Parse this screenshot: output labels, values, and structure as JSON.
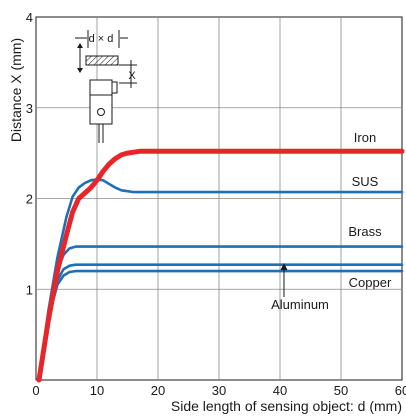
{
  "chart_data": {
    "type": "line",
    "title": "",
    "xlabel": "Side length of sensing object: d (mm)",
    "ylabel": "Distance X (mm)",
    "xlim": [
      0,
      60
    ],
    "ylim": [
      0,
      4
    ],
    "xticks": [
      0,
      10,
      20,
      30,
      40,
      50,
      60
    ],
    "yticks": [
      1,
      2,
      3,
      4
    ],
    "grid": true,
    "series": [
      {
        "name": "Iron",
        "color": "#e8262a",
        "x": [
          0.5,
          2,
          3.5,
          5,
          6,
          7,
          8,
          9,
          10,
          11,
          12,
          13,
          14,
          15,
          16,
          17,
          18,
          20,
          30,
          40,
          50,
          60
        ],
        "y": [
          0,
          0.65,
          1.2,
          1.6,
          1.85,
          2.0,
          2.06,
          2.12,
          2.2,
          2.3,
          2.38,
          2.44,
          2.48,
          2.5,
          2.51,
          2.52,
          2.52,
          2.52,
          2.52,
          2.52,
          2.52,
          2.52
        ]
      },
      {
        "name": "SUS",
        "color": "#1f6fb5",
        "x": [
          0.5,
          2,
          3.5,
          5,
          6,
          7,
          8,
          9,
          10,
          11,
          12,
          13,
          14,
          15,
          16,
          17,
          18,
          20,
          30,
          40,
          50,
          60
        ],
        "y": [
          0,
          0.75,
          1.35,
          1.8,
          2.02,
          2.12,
          2.17,
          2.2,
          2.21,
          2.2,
          2.16,
          2.12,
          2.09,
          2.08,
          2.07,
          2.07,
          2.07,
          2.07,
          2.07,
          2.07,
          2.07,
          2.07
        ]
      },
      {
        "name": "Brass",
        "color": "#1f6fb5",
        "x": [
          0.5,
          1.5,
          2.5,
          3.5,
          4.5,
          5.5,
          6.5,
          7.5,
          9,
          12,
          20,
          30,
          40,
          50,
          60
        ],
        "y": [
          0,
          0.45,
          0.85,
          1.2,
          1.38,
          1.45,
          1.47,
          1.47,
          1.47,
          1.47,
          1.47,
          1.47,
          1.47,
          1.47,
          1.47
        ]
      },
      {
        "name": "Aluminum",
        "color": "#1f6fb5",
        "x": [
          0.5,
          1.5,
          2.5,
          3.5,
          4.5,
          5.5,
          6.5,
          7.5,
          9,
          12,
          20,
          30,
          40,
          50,
          60
        ],
        "y": [
          0,
          0.45,
          0.85,
          1.1,
          1.22,
          1.26,
          1.27,
          1.27,
          1.27,
          1.27,
          1.27,
          1.27,
          1.27,
          1.27,
          1.27
        ]
      },
      {
        "name": "Copper",
        "color": "#1f6fb5",
        "x": [
          0.5,
          1.5,
          2.5,
          3.5,
          4.5,
          5.5,
          6.5,
          7.5,
          9,
          12,
          20,
          30,
          40,
          50,
          60
        ],
        "y": [
          0,
          0.45,
          0.8,
          1.05,
          1.15,
          1.19,
          1.2,
          1.2,
          1.2,
          1.2,
          1.2,
          1.2,
          1.2,
          1.2,
          1.2
        ]
      }
    ],
    "annotations": {
      "iron": "Iron",
      "sus": "SUS",
      "brass": "Brass",
      "copper": "Copper",
      "aluminum": "Aluminum"
    },
    "diagram": {
      "d_times_d": "d × d",
      "x": "X"
    }
  }
}
